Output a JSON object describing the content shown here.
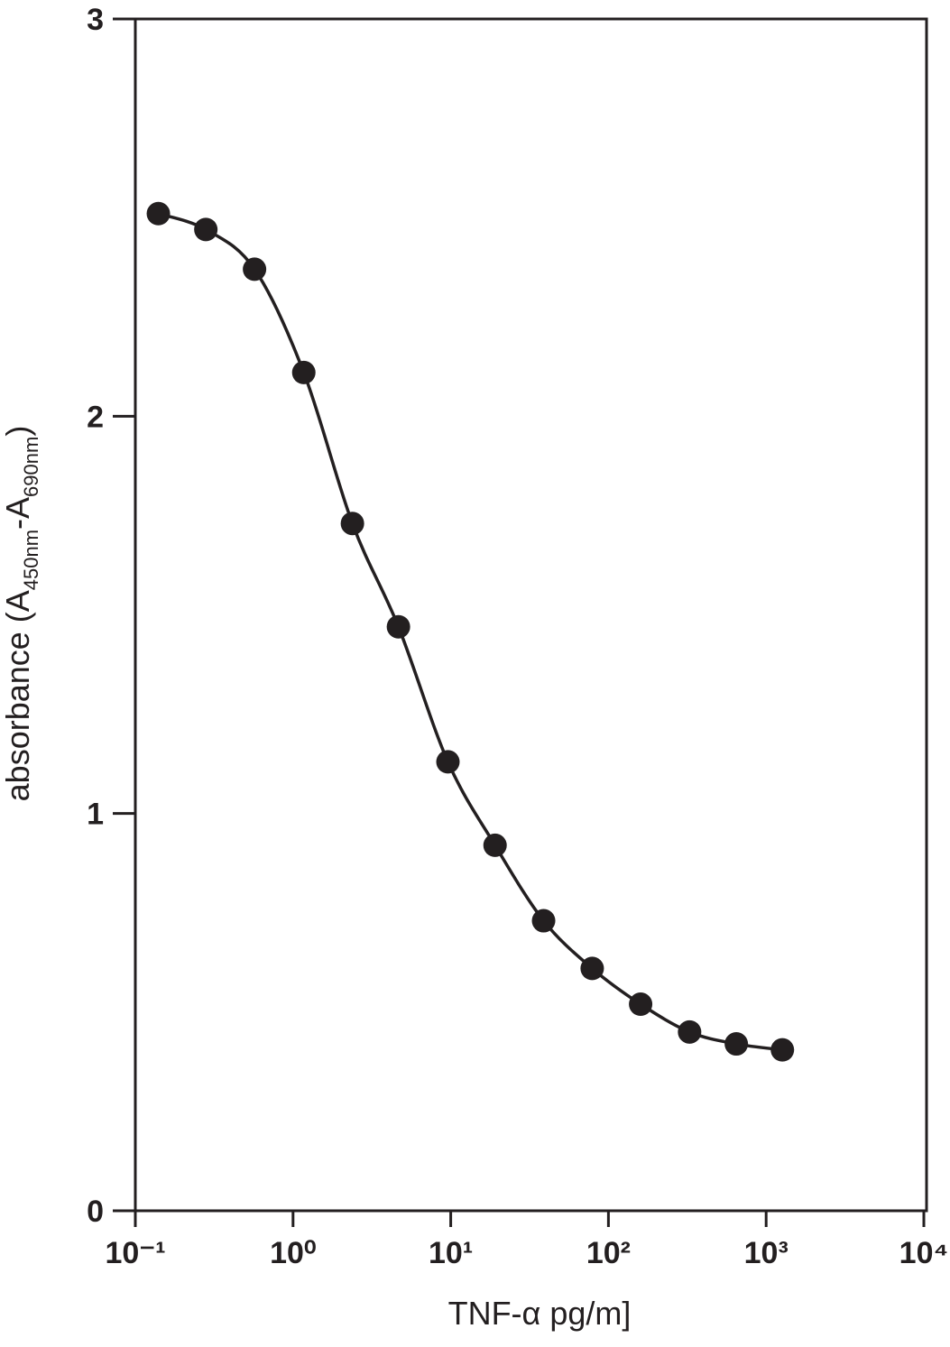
{
  "chart_data": {
    "type": "line",
    "x_label": "TNF-α pg/m]",
    "y_label": [
      "absorbance (A",
      "450nm",
      "-A",
      "690nm",
      ")"
    ],
    "x": [
      0.14,
      0.28,
      0.57,
      1.17,
      2.38,
      4.66,
      9.6,
      19.1,
      38.8,
      78.9,
      160,
      327,
      647,
      1268
    ],
    "values": [
      2.51,
      2.47,
      2.37,
      2.11,
      1.73,
      1.47,
      1.13,
      0.92,
      0.73,
      0.61,
      0.52,
      0.45,
      0.42,
      0.405
    ],
    "color": "#231f20",
    "xscale": "log",
    "xlim": [
      0.1,
      10000
    ],
    "xticks": [
      {
        "value": 0.1,
        "label": "10⁻¹"
      },
      {
        "value": 1,
        "label": "10⁰"
      },
      {
        "value": 10,
        "label": "10¹"
      },
      {
        "value": 100,
        "label": "10²"
      },
      {
        "value": 1000,
        "label": "10³"
      },
      {
        "value": 10000,
        "label": "10⁴"
      }
    ],
    "ylim": [
      0,
      3
    ],
    "yticks": [
      0,
      1,
      2,
      3
    ],
    "grid": false
  }
}
